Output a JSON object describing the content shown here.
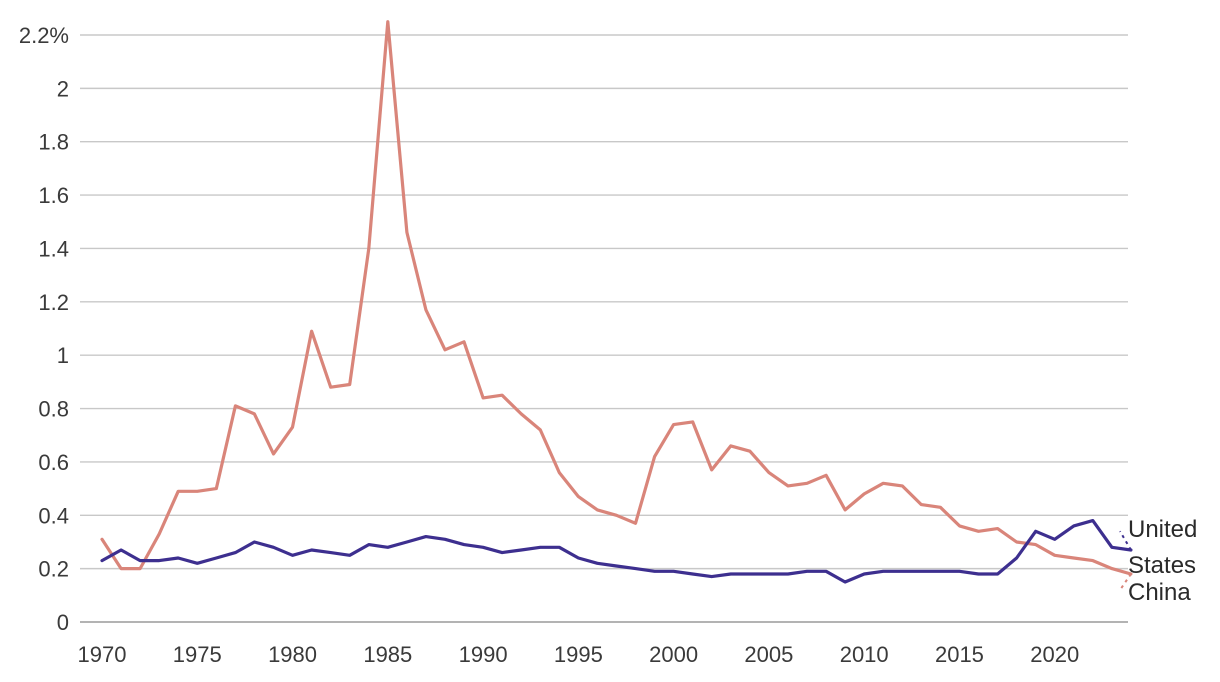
{
  "chart_data": {
    "type": "line",
    "title": "",
    "xlabel": "",
    "ylabel": "",
    "xlim": [
      1970,
      2024
    ],
    "ylim": [
      0,
      2.2
    ],
    "x": [
      1970,
      1971,
      1972,
      1973,
      1974,
      1975,
      1976,
      1977,
      1978,
      1979,
      1980,
      1981,
      1982,
      1983,
      1984,
      1985,
      1986,
      1987,
      1988,
      1989,
      1990,
      1991,
      1992,
      1993,
      1994,
      1995,
      1996,
      1997,
      1998,
      1999,
      2000,
      2001,
      2002,
      2003,
      2004,
      2005,
      2006,
      2007,
      2008,
      2009,
      2010,
      2011,
      2012,
      2013,
      2014,
      2015,
      2016,
      2017,
      2018,
      2019,
      2020,
      2021,
      2022,
      2023,
      2024
    ],
    "x_ticks": [
      "1970",
      "1975",
      "1980",
      "1985",
      "1990",
      "1995",
      "2000",
      "2005",
      "2010",
      "2015",
      "2020"
    ],
    "y_ticks": [
      "0",
      "0.2",
      "0.4",
      "0.6",
      "0.8",
      "1",
      "1.2",
      "1.4",
      "1.6",
      "1.8",
      "2",
      "2.2%"
    ],
    "grid": true,
    "series": [
      {
        "name": "China",
        "color": "#d9857a",
        "values": [
          0.31,
          0.2,
          0.2,
          0.33,
          0.49,
          0.49,
          0.5,
          0.81,
          0.78,
          0.63,
          0.73,
          1.09,
          0.88,
          0.89,
          1.4,
          2.25,
          1.46,
          1.17,
          1.02,
          1.05,
          0.84,
          0.85,
          0.78,
          0.72,
          0.56,
          0.47,
          0.42,
          0.4,
          0.37,
          0.62,
          0.74,
          0.75,
          0.57,
          0.66,
          0.64,
          0.56,
          0.51,
          0.52,
          0.55,
          0.42,
          0.48,
          0.52,
          0.51,
          0.44,
          0.43,
          0.36,
          0.34,
          0.35,
          0.3,
          0.29,
          0.25,
          0.24,
          0.23,
          0.2,
          0.18
        ],
        "projection_end": 0.12,
        "label_lines": [
          "China"
        ]
      },
      {
        "name": "United States",
        "color": "#3d2f8f",
        "values": [
          0.23,
          0.27,
          0.23,
          0.23,
          0.24,
          0.22,
          0.24,
          0.26,
          0.3,
          0.28,
          0.25,
          0.27,
          0.26,
          0.25,
          0.29,
          0.28,
          0.3,
          0.32,
          0.31,
          0.29,
          0.28,
          0.26,
          0.27,
          0.28,
          0.28,
          0.24,
          0.22,
          0.21,
          0.2,
          0.19,
          0.19,
          0.18,
          0.17,
          0.18,
          0.18,
          0.18,
          0.18,
          0.19,
          0.19,
          0.15,
          0.18,
          0.19,
          0.19,
          0.19,
          0.19,
          0.19,
          0.18,
          0.18,
          0.24,
          0.34,
          0.31,
          0.36,
          0.38,
          0.28,
          0.27
        ],
        "projection_end": 0.34,
        "label_lines": [
          "United",
          "States"
        ]
      }
    ]
  }
}
